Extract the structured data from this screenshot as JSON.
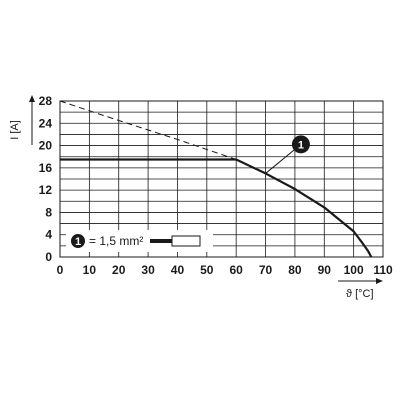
{
  "chart_data": {
    "type": "line",
    "xlabel": "ϑ [°C]",
    "ylabel": "I [A]",
    "xlim": [
      0,
      110
    ],
    "ylim": [
      0,
      28
    ],
    "x_ticks": [
      "0",
      "10",
      "20",
      "30",
      "40",
      "50",
      "60",
      "70",
      "80",
      "90",
      "100",
      "110"
    ],
    "y_ticks": [
      "0",
      "4",
      "8",
      "12",
      "16",
      "20",
      "24",
      "28"
    ],
    "grid": true,
    "series": [
      {
        "name": "1",
        "style": "solid",
        "x": [
          0,
          60,
          70,
          80,
          90,
          100,
          103,
          105,
          106
        ],
        "y": [
          17.5,
          17.5,
          15.0,
          12.2,
          8.9,
          4.6,
          2.5,
          1.0,
          0
        ]
      },
      {
        "style": "dashed",
        "x": [
          0,
          20,
          40,
          60
        ],
        "y": [
          28.0,
          24.5,
          21.1,
          17.5
        ]
      }
    ],
    "marker": {
      "label": "1",
      "x": 80,
      "y": 19.5,
      "line_to": {
        "x": 70,
        "y": 15.0
      }
    },
    "legend": {
      "position": "bottom-left",
      "marker_label": "1",
      "text": "= 1,5 mm²"
    }
  }
}
